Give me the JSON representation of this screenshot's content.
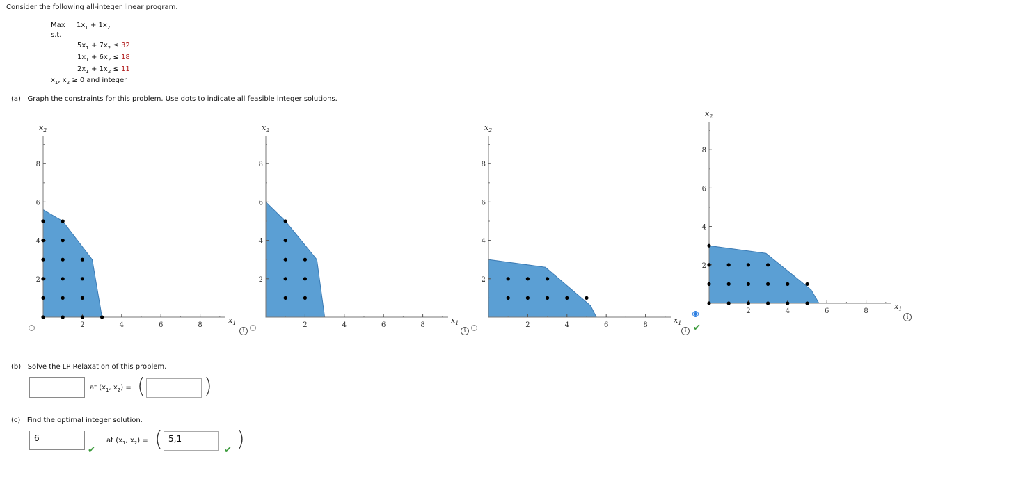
{
  "intro": "Consider the following all-integer linear program.",
  "lp": {
    "max_label": "Max",
    "st_label": "s.t.",
    "objective": {
      "c1": "1",
      "c2": "1"
    },
    "constraints": [
      {
        "a1": "5",
        "a2": "7",
        "rel": "≤",
        "rhs": "32"
      },
      {
        "a1": "1",
        "a2": "6",
        "rel": "≤",
        "rhs": "18"
      },
      {
        "a1": "2",
        "a2": "1",
        "rel": "≤",
        "rhs": "11"
      }
    ],
    "nonneg_text": "≥ 0 and integer"
  },
  "part_a": {
    "label": "(a)",
    "text": "Graph the constraints for this problem. Use dots to indicate all feasible integer solutions."
  },
  "graph_labels": {
    "x_axis": "x",
    "y_axis": "x"
  },
  "graphs": [
    {
      "selected": false,
      "has_info": false,
      "checked": false,
      "x_ticks": [
        "2",
        "4",
        "6",
        "8"
      ],
      "y_ticks": [
        "2",
        "4",
        "6",
        "8"
      ],
      "xmax": 9.5,
      "ymax": 9.5,
      "region": [
        [
          0,
          0
        ],
        [
          0,
          5.6
        ],
        [
          1,
          5
        ],
        [
          2.5,
          3
        ],
        [
          3,
          0
        ]
      ],
      "points": [
        [
          0,
          0
        ],
        [
          1,
          0
        ],
        [
          2,
          0
        ],
        [
          3,
          0
        ],
        [
          0,
          1
        ],
        [
          1,
          1
        ],
        [
          2,
          1
        ],
        [
          0,
          2
        ],
        [
          1,
          2
        ],
        [
          2,
          2
        ],
        [
          0,
          3
        ],
        [
          1,
          3
        ],
        [
          2,
          3
        ],
        [
          0,
          4
        ],
        [
          1,
          4
        ],
        [
          0,
          5
        ],
        [
          1,
          5
        ]
      ]
    },
    {
      "selected": false,
      "has_info": true,
      "checked": false,
      "x_ticks": [
        "2",
        "4",
        "6",
        "8"
      ],
      "y_ticks": [
        "2",
        "4",
        "6",
        "8"
      ],
      "xmax": 9.5,
      "ymax": 9.5,
      "region": [
        [
          0,
          0
        ],
        [
          0,
          6
        ],
        [
          1,
          5
        ],
        [
          2.6,
          3
        ],
        [
          3,
          0
        ]
      ],
      "points": [
        [
          1,
          1
        ],
        [
          2,
          1
        ],
        [
          1,
          2
        ],
        [
          2,
          2
        ],
        [
          1,
          3
        ],
        [
          2,
          3
        ],
        [
          1,
          4
        ],
        [
          1,
          5
        ]
      ]
    },
    {
      "selected": false,
      "has_info": true,
      "checked": false,
      "x_ticks": [
        "2",
        "4",
        "6",
        "8"
      ],
      "y_ticks": [
        "2",
        "4",
        "6",
        "8"
      ],
      "xmax": 9.5,
      "ymax": 9.5,
      "region": [
        [
          0,
          0
        ],
        [
          0,
          3
        ],
        [
          2.9,
          2.6
        ],
        [
          5.2,
          0.6
        ],
        [
          5.5,
          0
        ]
      ],
      "points": [
        [
          1,
          1
        ],
        [
          2,
          1
        ],
        [
          3,
          1
        ],
        [
          4,
          1
        ],
        [
          5,
          1
        ],
        [
          1,
          2
        ],
        [
          2,
          2
        ],
        [
          3,
          2
        ]
      ]
    },
    {
      "selected": true,
      "has_info": true,
      "checked": true,
      "x_ticks": [
        "2",
        "4",
        "6",
        "8"
      ],
      "y_ticks": [
        "2",
        "4",
        "6",
        "8"
      ],
      "xmax": 9.5,
      "ymax": 9.5,
      "region": [
        [
          0,
          0
        ],
        [
          0,
          3
        ],
        [
          2.9,
          2.6
        ],
        [
          5.2,
          0.7
        ],
        [
          5.6,
          0
        ]
      ],
      "points": [
        [
          0,
          0
        ],
        [
          1,
          0
        ],
        [
          2,
          0
        ],
        [
          3,
          0
        ],
        [
          4,
          0
        ],
        [
          5,
          0
        ],
        [
          0,
          1
        ],
        [
          1,
          1
        ],
        [
          2,
          1
        ],
        [
          3,
          1
        ],
        [
          4,
          1
        ],
        [
          5,
          1
        ],
        [
          0,
          2
        ],
        [
          1,
          2
        ],
        [
          2,
          2
        ],
        [
          3,
          2
        ],
        [
          0,
          3
        ]
      ]
    }
  ],
  "part_b": {
    "label": "(b)",
    "text": "Solve the LP Relaxation of this problem.",
    "value": "",
    "at_text": "at (x",
    "point_value": ""
  },
  "part_c": {
    "label": "(c)",
    "text": "Find the optimal integer solution.",
    "value": "6",
    "at_text": "at (x",
    "point_value": "5,1"
  },
  "colors": {
    "region_fill": "#5b9fd4",
    "region_stroke": "#3b7bb5",
    "check": "#3a9a3a",
    "radio_selected": "#2a7de1"
  }
}
